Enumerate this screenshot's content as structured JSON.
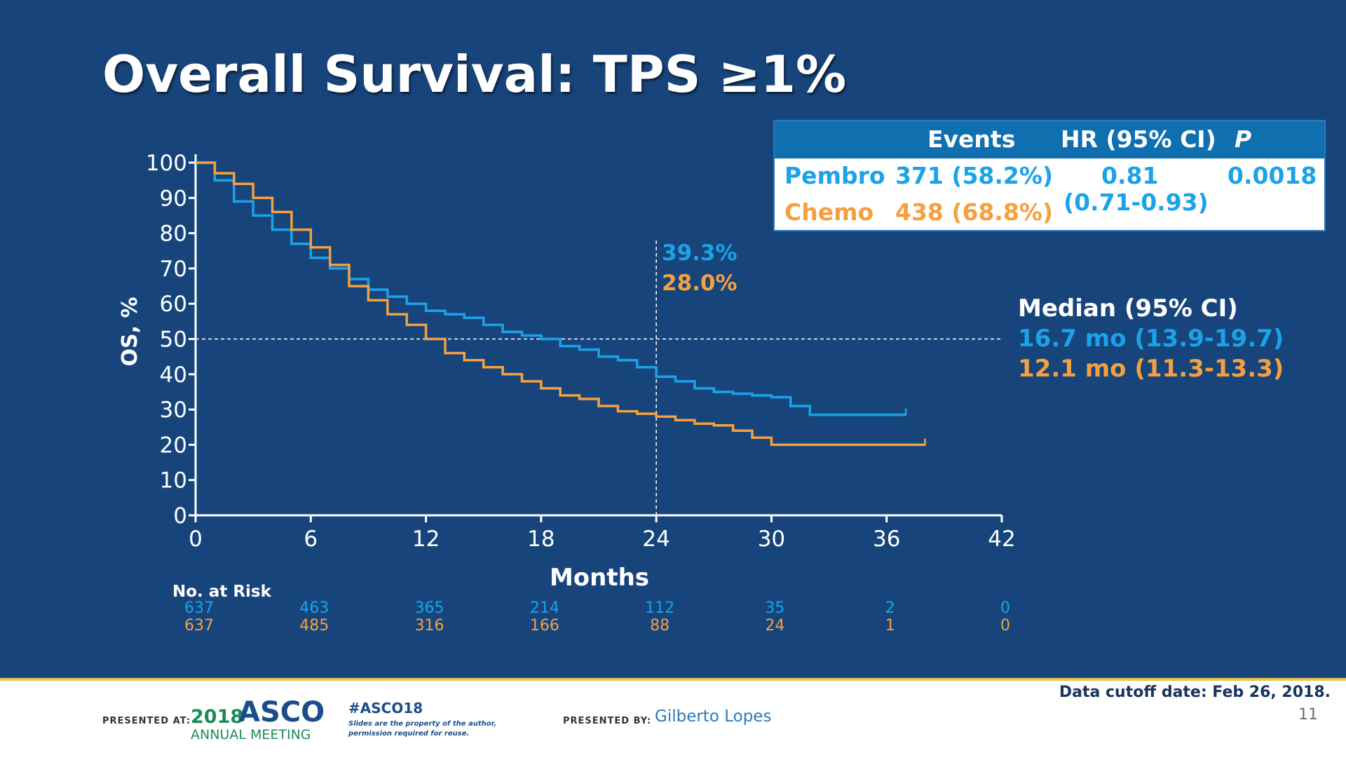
{
  "slide": {
    "title": "Overall Survival: TPS ≥1%",
    "page_number": "11",
    "cutoff_note": "Data cutoff date: Feb 26, 2018."
  },
  "colors": {
    "background": "#17457b",
    "pembro": "#1aa3e8",
    "chemo": "#f5a040",
    "table_header": "#0f6faf"
  },
  "stats_table": {
    "headers": {
      "events": "Events",
      "hr": "HR (95% CI)",
      "p": "P"
    },
    "rows": [
      {
        "arm": "Pembro",
        "events": "371 (58.2%)"
      },
      {
        "arm": "Chemo",
        "events": "438 (68.8%)"
      }
    ],
    "hr_value": "0.81",
    "hr_ci": "(0.71-0.93)",
    "p_value": "0.0018"
  },
  "median": {
    "title": "Median (95% CI)",
    "pembro": "16.7 mo (13.9-19.7)",
    "chemo": "12.1 mo (11.3-13.3)"
  },
  "chart_data": {
    "type": "line",
    "title": "Overall Survival: TPS ≥1%",
    "xlabel": "Months",
    "ylabel": "OS, %",
    "xlim": [
      0,
      42
    ],
    "ylim": [
      0,
      100
    ],
    "x_ticks": [
      0,
      6,
      12,
      18,
      24,
      30,
      36,
      42
    ],
    "y_ticks": [
      0,
      10,
      20,
      30,
      40,
      50,
      60,
      70,
      80,
      90,
      100
    ],
    "reference_lines": {
      "y": 50,
      "x": 24
    },
    "annotation": {
      "pembro": "39.3%",
      "chemo": "28.0%"
    },
    "series": [
      {
        "key": "pembro",
        "x": [
          0,
          1,
          2,
          3,
          4,
          5,
          6,
          7,
          8,
          9,
          10,
          11,
          12,
          13,
          14,
          15,
          16,
          17,
          18,
          19,
          20,
          21,
          22,
          23,
          24,
          25,
          26,
          27,
          28,
          29,
          30,
          31,
          32,
          33,
          34,
          35,
          36,
          37
        ],
        "y": [
          100,
          95,
          89,
          85,
          81,
          77,
          73,
          70,
          67,
          64,
          62,
          60,
          58,
          57,
          56,
          54,
          52,
          51,
          50,
          48,
          47,
          45,
          44,
          42,
          39.3,
          38,
          36,
          35,
          34.5,
          34,
          33.5,
          31,
          28.5,
          28.5,
          28.5,
          28.5,
          28.5,
          28.5
        ]
      },
      {
        "key": "chemo",
        "x": [
          0,
          1,
          2,
          3,
          4,
          5,
          6,
          7,
          8,
          9,
          10,
          11,
          12,
          13,
          14,
          15,
          16,
          17,
          18,
          19,
          20,
          21,
          22,
          23,
          24,
          25,
          26,
          27,
          28,
          29,
          30,
          31,
          32,
          33,
          34,
          35,
          36,
          37,
          38
        ],
        "y": [
          100,
          97,
          94,
          90,
          86,
          81,
          76,
          71,
          65,
          61,
          57,
          54,
          50,
          46,
          44,
          42,
          40,
          38,
          36,
          34,
          33,
          31,
          29.5,
          28.8,
          28,
          27,
          26,
          25.5,
          24,
          22,
          20,
          20,
          20,
          20,
          20,
          20,
          20,
          20,
          20
        ]
      }
    ]
  },
  "risk_table": {
    "label": "No. at Risk",
    "pembro": [
      "637",
      "463",
      "365",
      "214",
      "112",
      "35",
      "2",
      "0"
    ],
    "chemo": [
      "637",
      "485",
      "316",
      "166",
      "88",
      "24",
      "1",
      "0"
    ]
  },
  "footer": {
    "presented_at_label": "PRESENTED AT:",
    "meeting_year": "2018",
    "meeting_name": "ASCO",
    "meeting_sub": "ANNUAL MEETING",
    "hashtag": "#ASCO18",
    "disclaimer_1": "Slides are the property of the author,",
    "disclaimer_2": "permission required for reuse.",
    "presented_by_label": "PRESENTED BY:",
    "presenter": "Gilberto Lopes"
  }
}
